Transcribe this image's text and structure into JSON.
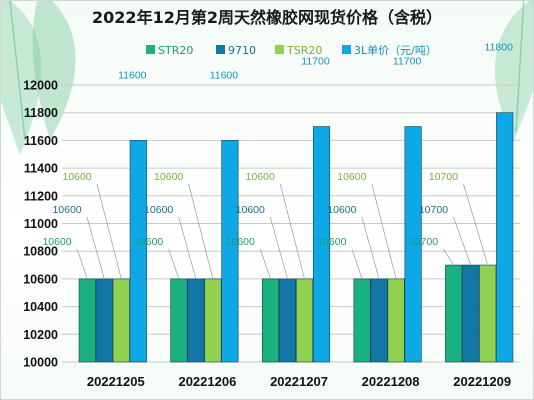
{
  "chart_data": {
    "type": "bar",
    "title": "2022年12月第2周天然橡胶网现货价格（含税）",
    "categories": [
      "20221205",
      "20221206",
      "20221207",
      "20221208",
      "20221209"
    ],
    "series": [
      {
        "name": "STR20",
        "color": "#1bb07f",
        "label_color": "#1e9b72",
        "values": [
          10600,
          10600,
          10600,
          10600,
          10700
        ]
      },
      {
        "name": "9710",
        "color": "#1378a6",
        "label_color": "#1a6f99",
        "values": [
          10600,
          10600,
          10600,
          10600,
          10700
        ]
      },
      {
        "name": "TSR20",
        "color": "#92d050",
        "label_color": "#7fae3b",
        "values": [
          10600,
          10600,
          10600,
          10600,
          10700
        ]
      },
      {
        "name": "3L单价（元/吨）",
        "color": "#0fa8e6",
        "label_color": "#1591c6",
        "values": [
          11600,
          11600,
          11700,
          11700,
          11800
        ]
      }
    ],
    "ylim": [
      10000,
      12000
    ],
    "yticks": [
      10000,
      10200,
      10400,
      10600,
      10800,
      11000,
      11200,
      11400,
      11600,
      11800,
      12000
    ],
    "grid": true,
    "legend_position": "top"
  }
}
